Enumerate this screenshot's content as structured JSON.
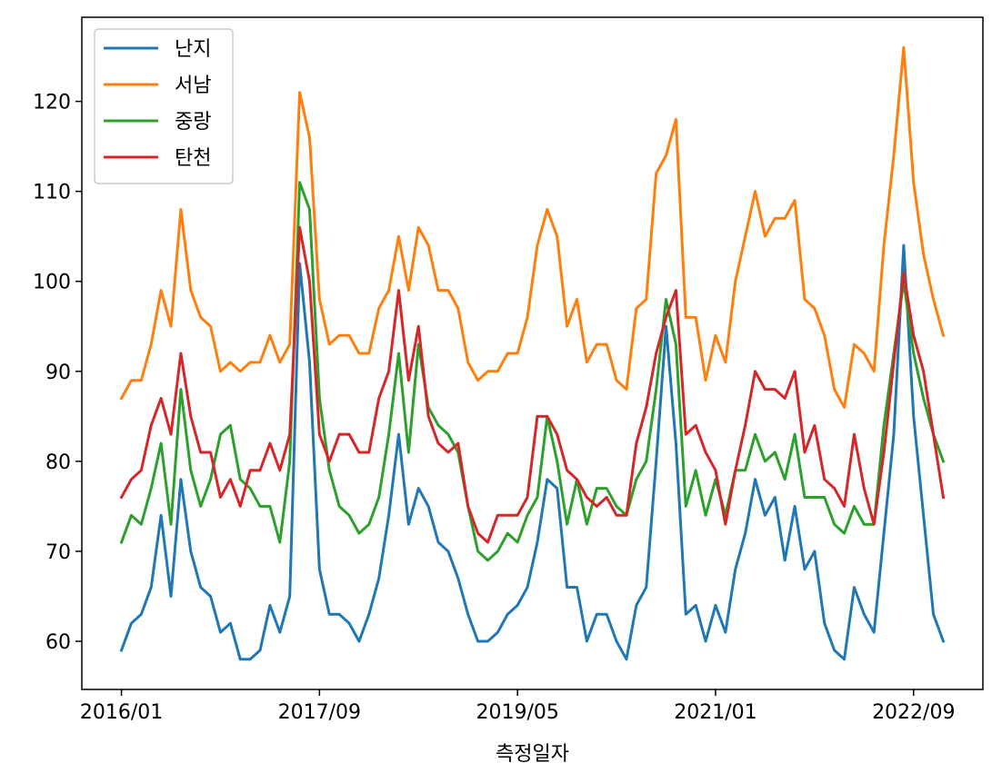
{
  "chart_data": {
    "type": "line",
    "title": "",
    "xlabel": "측정일자",
    "ylabel": "",
    "x_start": "2016/01",
    "x_tick_indices": [
      0,
      20,
      40,
      60,
      80
    ],
    "x_tick_labels": [
      "2016/01",
      "2017/09",
      "2019/05",
      "2021/01",
      "2022/09"
    ],
    "x_range": [
      -4,
      87
    ],
    "y_ticks": [
      60,
      70,
      80,
      90,
      100,
      110,
      120
    ],
    "ylim": [
      54.65,
      129.35
    ],
    "legend_position": "upper left",
    "grid": false,
    "series": [
      {
        "name": "난지",
        "color": "#1f77b4",
        "values": [
          59,
          62,
          63,
          66,
          74,
          65,
          78,
          70,
          66,
          65,
          61,
          62,
          58,
          58,
          59,
          64,
          61,
          65,
          102,
          91,
          68,
          63,
          63,
          62,
          60,
          63,
          67,
          74,
          83,
          73,
          77,
          75,
          71,
          70,
          67,
          63,
          60,
          60,
          61,
          63,
          64,
          66,
          71,
          78,
          77,
          66,
          66,
          60,
          63,
          63,
          60,
          58,
          64,
          66,
          80,
          95,
          82,
          63,
          64,
          60,
          64,
          61,
          68,
          72,
          78,
          74,
          76,
          69,
          75,
          68,
          70,
          62,
          59,
          58,
          66,
          63,
          61,
          72,
          83,
          104,
          85,
          74,
          63,
          60
        ]
      },
      {
        "name": "서남",
        "color": "#ff7f0e",
        "values": [
          87,
          89,
          89,
          93,
          99,
          95,
          108,
          99,
          96,
          95,
          90,
          91,
          90,
          91,
          91,
          94,
          91,
          93,
          121,
          116,
          98,
          93,
          94,
          94,
          92,
          92,
          97,
          99,
          105,
          99,
          106,
          104,
          99,
          99,
          97,
          91,
          89,
          90,
          90,
          92,
          92,
          96,
          104,
          108,
          105,
          95,
          98,
          91,
          93,
          93,
          89,
          88,
          97,
          98,
          112,
          114,
          118,
          96,
          96,
          89,
          94,
          91,
          100,
          105,
          110,
          105,
          107,
          107,
          109,
          98,
          97,
          94,
          88,
          86,
          93,
          92,
          90,
          104,
          114,
          126,
          111,
          103,
          98,
          94
        ]
      },
      {
        "name": "중랑",
        "color": "#2ca02c",
        "values": [
          71,
          74,
          73,
          77,
          82,
          73,
          88,
          79,
          75,
          78,
          83,
          84,
          78,
          77,
          75,
          75,
          71,
          80,
          111,
          108,
          87,
          79,
          75,
          74,
          72,
          73,
          76,
          83,
          92,
          81,
          93,
          86,
          84,
          83,
          81,
          75,
          70,
          69,
          70,
          72,
          71,
          74,
          76,
          85,
          80,
          73,
          78,
          73,
          77,
          77,
          75,
          74,
          78,
          80,
          88,
          98,
          93,
          75,
          79,
          74,
          78,
          74,
          79,
          79,
          83,
          80,
          81,
          78,
          83,
          76,
          76,
          76,
          73,
          72,
          75,
          73,
          73,
          84,
          92,
          100,
          92,
          87,
          83,
          80
        ]
      },
      {
        "name": "탄천",
        "color": "#d62728",
        "values": [
          76,
          78,
          79,
          84,
          87,
          83,
          92,
          85,
          81,
          81,
          76,
          78,
          75,
          79,
          79,
          82,
          79,
          83,
          106,
          100,
          83,
          80,
          83,
          83,
          81,
          81,
          87,
          90,
          99,
          89,
          95,
          85,
          82,
          81,
          82,
          75,
          72,
          71,
          74,
          74,
          74,
          76,
          85,
          85,
          83,
          79,
          78,
          76,
          75,
          76,
          74,
          74,
          82,
          86,
          92,
          96,
          99,
          83,
          84,
          81,
          79,
          73,
          79,
          84,
          90,
          88,
          88,
          87,
          90,
          81,
          84,
          78,
          77,
          75,
          83,
          77,
          73,
          81,
          91,
          101,
          94,
          90,
          83,
          76
        ]
      }
    ]
  }
}
